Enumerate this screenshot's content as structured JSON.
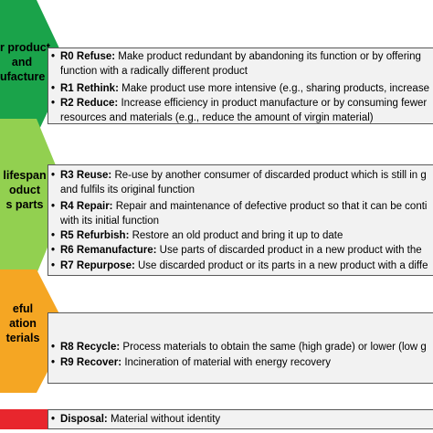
{
  "colors": {
    "green_dark": "#1aa34a",
    "green_light": "#92d050",
    "orange": "#f5a623",
    "red": "#e8262d",
    "panel_bg": "#f2f2f2",
    "panel_border": "#595959"
  },
  "groups": [
    {
      "label_lines": [
        "r product",
        "and",
        "ufacture"
      ],
      "items": [
        {
          "code": "R0 Refuse:",
          "lines": [
            "Make product redundant by abandoning its function or by offering",
            "function with a radically different product"
          ]
        },
        {
          "code": "R1 Rethink:",
          "lines": [
            "Make product use more intensive (e.g., sharing products, increase"
          ]
        },
        {
          "code": "R2 Reduce:",
          "lines": [
            "Increase efficiency in product manufacture or by consuming fewer",
            "resources and materials (e.g., reduce the amount of virgin material)"
          ]
        }
      ]
    },
    {
      "label_lines": [
        "lifespan",
        "oduct",
        "s parts"
      ],
      "items": [
        {
          "code": "R3 Reuse:",
          "lines": [
            "Re-use by another consumer of discarded product which is still in g",
            "and fulfils its original function"
          ]
        },
        {
          "code": "R4 Repair:",
          "lines": [
            "Repair and maintenance of defective product so that it can be conti",
            "with its initial function"
          ]
        },
        {
          "code": "R5 Refurbish:",
          "lines": [
            "Restore an old product and bring it up to date"
          ]
        },
        {
          "code": "R6 Remanufacture:",
          "lines": [
            "Use parts of discarded product in a new product with the"
          ]
        },
        {
          "code": "R7 Repurpose:",
          "lines": [
            "Use discarded product or its parts in a new product with a diffe"
          ]
        }
      ]
    },
    {
      "label_lines": [
        "eful",
        "ation",
        "terials"
      ],
      "items": [
        {
          "code": "R8 Recycle:",
          "lines": [
            "Process materials to obtain the same (high grade) or lower (low g"
          ]
        },
        {
          "code": "R9 Recover:",
          "lines": [
            "Incineration of material with energy recovery"
          ]
        }
      ]
    },
    {
      "label_lines": [],
      "items": [
        {
          "code": "Disposal:",
          "lines": [
            "Material without identity"
          ]
        }
      ]
    }
  ]
}
